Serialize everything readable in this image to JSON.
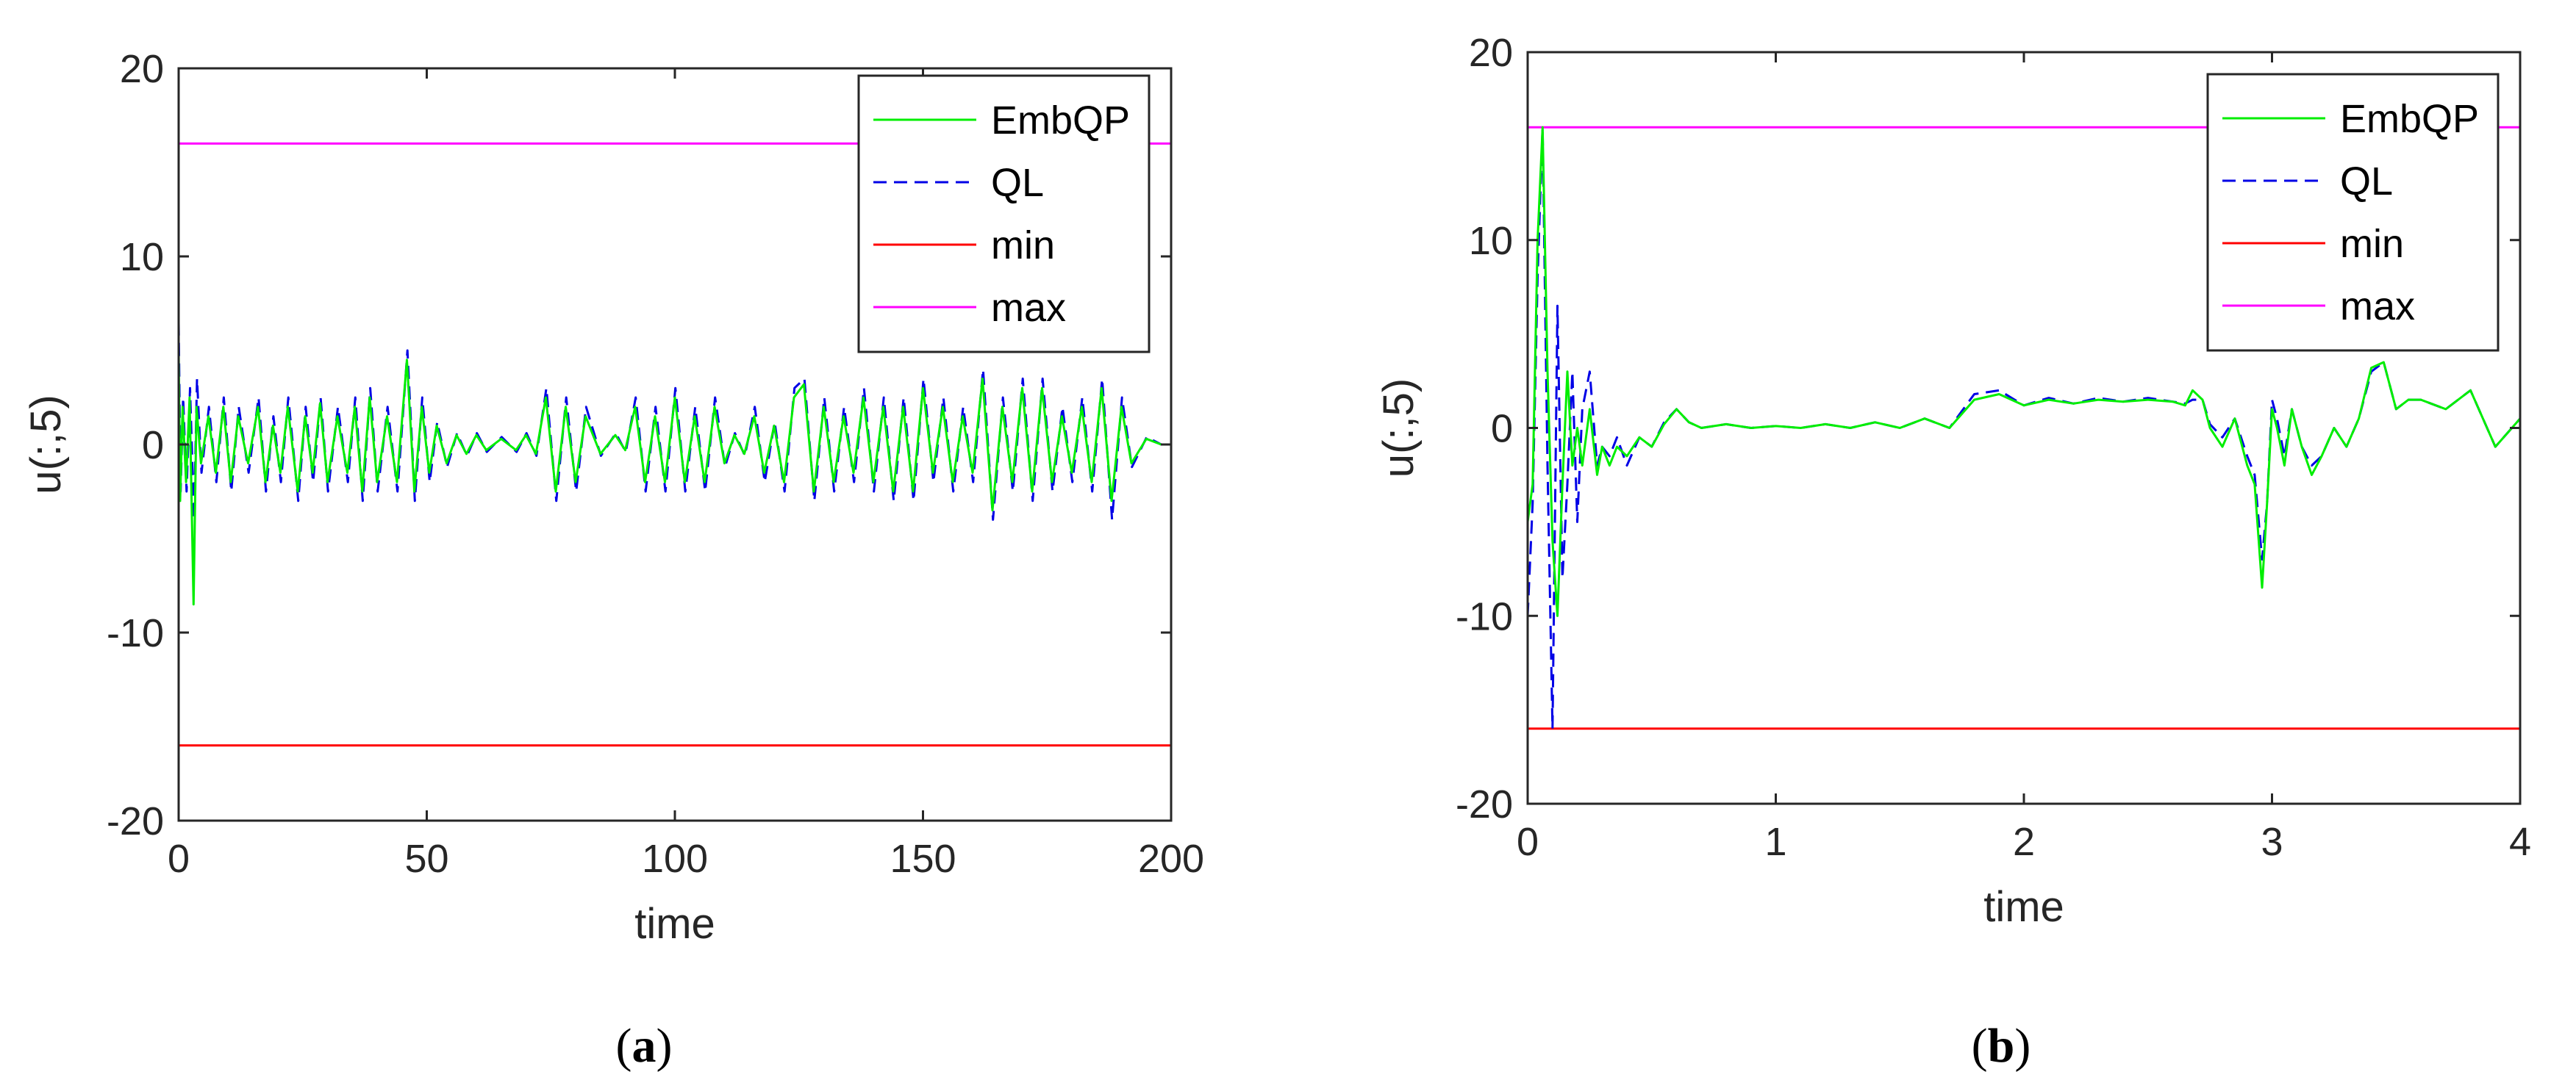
{
  "chart_data": [
    {
      "type": "line",
      "panel": "(a)",
      "caption_letter": "a",
      "xlabel": "time",
      "ylabel": "u(:,5)",
      "xlim": [
        0,
        200
      ],
      "ylim": [
        -20,
        20
      ],
      "xticks": [
        0,
        50,
        100,
        150,
        200
      ],
      "xtick_labels": [
        "0",
        "50",
        "100",
        "150",
        "200"
      ],
      "yticks": [
        -20,
        -10,
        0,
        10,
        20
      ],
      "ytick_labels": [
        "-20",
        "-10",
        "0",
        "10",
        "20"
      ],
      "legend": [
        "EmbQP",
        "QL",
        "min",
        "max"
      ],
      "legend_position": "top-right",
      "series": [
        {
          "name": "EmbQP",
          "color": "#00ee00",
          "style": "solid",
          "x": [
            0,
            0.3,
            0.8,
            1.5,
            2.2,
            3,
            3.6,
            4.5,
            6,
            7.5,
            9,
            10.5,
            12,
            14,
            16,
            17.5,
            19,
            20.5,
            22,
            24,
            25.5,
            27,
            28.5,
            30,
            32,
            34,
            35.5,
            37,
            38.5,
            40,
            42,
            44,
            46,
            47.5,
            49,
            50.5,
            52,
            54,
            56,
            58,
            60,
            62,
            65,
            68,
            70,
            72,
            74,
            76,
            78,
            80,
            82,
            85,
            88,
            90,
            92,
            94,
            96,
            98,
            100,
            102,
            104,
            106,
            108,
            110,
            112,
            114,
            116,
            118,
            120,
            122,
            124,
            126,
            128,
            130,
            132,
            134,
            136,
            138,
            140,
            142,
            144,
            146,
            148,
            150,
            152,
            154,
            156,
            158,
            160,
            162,
            164,
            166,
            168,
            170,
            172,
            174,
            176,
            178,
            180,
            182,
            184,
            186,
            188,
            190,
            192,
            195,
            198
          ],
          "values": [
            5,
            -3,
            2,
            -2,
            2.5,
            -8.5,
            2,
            -1,
            1.5,
            -1.5,
            2,
            -2,
            1.5,
            -1,
            2,
            -2,
            1,
            -1.5,
            2,
            -2.5,
            1.5,
            -1.5,
            2.2,
            -2,
            1.5,
            -1.5,
            2,
            -2.5,
            2.5,
            -2,
            1.5,
            -2,
            4.5,
            -2.5,
            2,
            -1.5,
            1,
            -1,
            0.5,
            -0.5,
            0.5,
            -0.3,
            0.3,
            -0.3,
            0.5,
            -0.5,
            2.5,
            -2.5,
            2,
            -2,
            1.5,
            -0.5,
            0.5,
            -0.3,
            2,
            -2,
            1.5,
            -2,
            2.5,
            -2,
            1.5,
            -2,
            2,
            -1,
            0.5,
            -0.5,
            1.5,
            -1.5,
            1,
            -2,
            2.5,
            3.2,
            -2.5,
            2,
            -2,
            1.5,
            -1.5,
            2.5,
            -2,
            2,
            -2.5,
            2,
            -2.5,
            3,
            -1.5,
            2,
            -2,
            1.5,
            -1.5,
            3.5,
            -3.5,
            2,
            -2,
            3,
            -2.5,
            3,
            -2,
            1.5,
            -1.5,
            2,
            -2,
            3,
            -3,
            2,
            -1,
            0.3,
            0
          ]
        },
        {
          "name": "QL",
          "color": "#0000e6",
          "style": "dashed",
          "x": [
            0,
            0.4,
            0.9,
            1.6,
            2.3,
            3.1,
            3.7,
            4.6,
            6.1,
            7.6,
            9.1,
            10.6,
            12.1,
            14.1,
            16.1,
            17.6,
            19.1,
            20.6,
            22.1,
            24.1,
            25.6,
            27.1,
            28.6,
            30.1,
            32.1,
            34.1,
            35.6,
            37.1,
            38.6,
            40.1,
            42.1,
            44.1,
            46.1,
            47.6,
            49.1,
            50.6,
            52.1,
            54.1,
            56.1,
            58.1,
            60.1,
            62.1,
            65.1,
            68.1,
            70.1,
            72.1,
            74.1,
            76.1,
            78.1,
            80.1,
            82.1,
            85.1,
            88.1,
            90.1,
            92.1,
            94.1,
            96.1,
            98.1,
            100.1,
            102.1,
            104.1,
            106.1,
            108.1,
            110.1,
            112.1,
            114.1,
            116.1,
            118.1,
            120.1,
            122.1,
            124.1,
            126.1,
            128.1,
            130.1,
            132.1,
            134.1,
            136.1,
            138.1,
            140.1,
            142.1,
            144.1,
            146.1,
            148.1,
            150.1,
            152.1,
            154.1,
            156.1,
            158.1,
            160.1,
            162.1,
            164.1,
            166.1,
            168.1,
            170.1,
            172.1,
            174.1,
            176.1,
            178.1,
            180.1,
            182.1,
            184.1,
            186.1,
            188.1,
            190.1,
            192.1,
            195.1,
            198
          ],
          "values": [
            6.5,
            -2.5,
            2.5,
            -2.5,
            3,
            -4,
            3.5,
            -1.5,
            2,
            -2,
            2.5,
            -2.5,
            2,
            -1.5,
            2.5,
            -2.5,
            1.5,
            -2,
            2.5,
            -3,
            2,
            -2,
            2.5,
            -2.5,
            2,
            -2,
            2.5,
            -3,
            3,
            -2.5,
            2,
            -2.5,
            5,
            -3,
            2.5,
            -2,
            1.2,
            -1.2,
            0.6,
            -0.6,
            0.6,
            -0.4,
            0.4,
            -0.4,
            0.6,
            -0.6,
            3,
            -3,
            2.5,
            -2.5,
            2,
            -0.6,
            0.6,
            -0.4,
            2.5,
            -2.5,
            2,
            -2.5,
            3,
            -2.5,
            2,
            -2.5,
            2.5,
            -1.2,
            0.6,
            -0.6,
            2,
            -2,
            1.2,
            -2.5,
            3,
            3.5,
            -3,
            2.5,
            -2.5,
            2,
            -2,
            3,
            -2.5,
            2.5,
            -3,
            2.5,
            -3,
            3.5,
            -2,
            2.5,
            -2.5,
            2,
            -2,
            4,
            -4,
            2.5,
            -2.5,
            3.5,
            -3,
            3.5,
            -2.5,
            2,
            -2,
            2.5,
            -2.5,
            3.5,
            -4,
            2.5,
            -1.2,
            0.4,
            0
          ]
        },
        {
          "name": "min",
          "color": "#ff0000",
          "style": "solid",
          "x": [
            0,
            0,
            0.5,
            200
          ],
          "values": [
            -4,
            -16,
            -16,
            -16
          ]
        },
        {
          "name": "max",
          "color": "#ff00ff",
          "style": "solid",
          "x": [
            0,
            0,
            0.5,
            200
          ],
          "values": [
            4,
            16,
            16,
            16
          ]
        }
      ]
    },
    {
      "type": "line",
      "panel": "(b)",
      "caption_letter": "b",
      "xlabel": "time",
      "ylabel": "u(:,5)",
      "xlim": [
        0,
        4
      ],
      "ylim": [
        -20,
        20
      ],
      "xticks": [
        0,
        1,
        2,
        3,
        4
      ],
      "xtick_labels": [
        "0",
        "1",
        "2",
        "3",
        "4"
      ],
      "yticks": [
        -20,
        -10,
        0,
        10,
        20
      ],
      "ytick_labels": [
        "-20",
        "-10",
        "0",
        "10",
        "20"
      ],
      "legend": [
        "EmbQP",
        "QL",
        "min",
        "max"
      ],
      "legend_position": "top-right",
      "series": [
        {
          "name": "EmbQP",
          "color": "#00ee00",
          "style": "solid",
          "x": [
            0,
            0.02,
            0.04,
            0.06,
            0.08,
            0.1,
            0.12,
            0.14,
            0.16,
            0.18,
            0.2,
            0.22,
            0.25,
            0.28,
            0.3,
            0.33,
            0.36,
            0.4,
            0.45,
            0.5,
            0.55,
            0.6,
            0.65,
            0.7,
            0.8,
            0.9,
            1.0,
            1.1,
            1.2,
            1.3,
            1.4,
            1.5,
            1.6,
            1.7,
            1.8,
            1.9,
            2.0,
            2.1,
            2.2,
            2.3,
            2.4,
            2.5,
            2.6,
            2.65,
            2.68,
            2.72,
            2.75,
            2.8,
            2.85,
            2.9,
            2.93,
            2.96,
            2.98,
            3.0,
            3.02,
            3.05,
            3.08,
            3.12,
            3.16,
            3.2,
            3.25,
            3.3,
            3.35,
            3.4,
            3.45,
            3.5,
            3.55,
            3.6,
            3.7,
            3.8,
            3.9,
            4.0
          ],
          "values": [
            -5,
            -3,
            10,
            16,
            3,
            -6,
            -10,
            -3,
            3,
            -2,
            0,
            -2,
            1,
            -2.5,
            -1,
            -2,
            -1,
            -1.5,
            -0.5,
            -1,
            0.2,
            1,
            0.3,
            0,
            0.2,
            0,
            0.1,
            0,
            0.2,
            0,
            0.3,
            0,
            0.5,
            0,
            1.5,
            1.8,
            1.2,
            1.5,
            1.3,
            1.5,
            1.4,
            1.5,
            1.4,
            1.2,
            2,
            1.5,
            0,
            -1,
            0.5,
            -2,
            -3,
            -8.5,
            -4,
            1,
            0,
            -2,
            1,
            -1,
            -2.5,
            -1.5,
            0,
            -1,
            0.5,
            3.2,
            3.5,
            1,
            1.5,
            1.5,
            1,
            2,
            -1,
            0.5
          ]
        },
        {
          "name": "QL",
          "color": "#0000e6",
          "style": "dashed",
          "x": [
            0,
            0.02,
            0.04,
            0.06,
            0.08,
            0.1,
            0.12,
            0.14,
            0.16,
            0.18,
            0.2,
            0.22,
            0.25,
            0.28,
            0.3,
            0.33,
            0.36,
            0.4,
            0.45,
            0.5,
            0.55,
            0.6,
            0.65,
            0.7,
            0.8,
            0.9,
            1.0,
            1.1,
            1.2,
            1.3,
            1.4,
            1.5,
            1.6,
            1.7,
            1.8,
            1.9,
            2.0,
            2.1,
            2.2,
            2.3,
            2.4,
            2.5,
            2.6,
            2.65,
            2.68,
            2.72,
            2.75,
            2.8,
            2.85,
            2.9,
            2.93,
            2.96,
            2.98,
            3.0,
            3.02,
            3.05,
            3.08,
            3.12,
            3.16,
            3.2,
            3.25,
            3.3,
            3.35,
            3.4,
            3.45,
            3.5,
            3.55,
            3.6,
            3.7,
            3.8,
            3.9,
            4.0
          ],
          "values": [
            -10,
            -4,
            8,
            16,
            -2,
            -16,
            6.5,
            -8,
            -3,
            3,
            -5,
            1,
            3,
            -2,
            -1,
            -1.5,
            -0.5,
            -2,
            -0.5,
            -1,
            0.3,
            1,
            0.3,
            0,
            0.2,
            0,
            0.1,
            0,
            0.2,
            0,
            0.3,
            0,
            0.5,
            0,
            1.8,
            2,
            1.2,
            1.6,
            1.3,
            1.6,
            1.4,
            1.6,
            1.4,
            1.3,
            1.5,
            1.5,
            0.2,
            -0.5,
            0.5,
            -1.5,
            -2.5,
            -7,
            -4,
            1.5,
            0.5,
            -1.5,
            1,
            -1,
            -2,
            -1.5,
            0,
            -1,
            0.5,
            3,
            3.5,
            1,
            1.5,
            1.5,
            1,
            2,
            -1,
            0.5
          ]
        },
        {
          "name": "min",
          "color": "#ff0000",
          "style": "solid",
          "x": [
            0,
            0,
            0.02,
            4
          ],
          "values": [
            -5,
            -16,
            -16,
            -16
          ]
        },
        {
          "name": "max",
          "color": "#ff00ff",
          "style": "solid",
          "x": [
            0,
            0,
            0.02,
            4
          ],
          "values": [
            5,
            16,
            16,
            16
          ]
        }
      ]
    }
  ]
}
